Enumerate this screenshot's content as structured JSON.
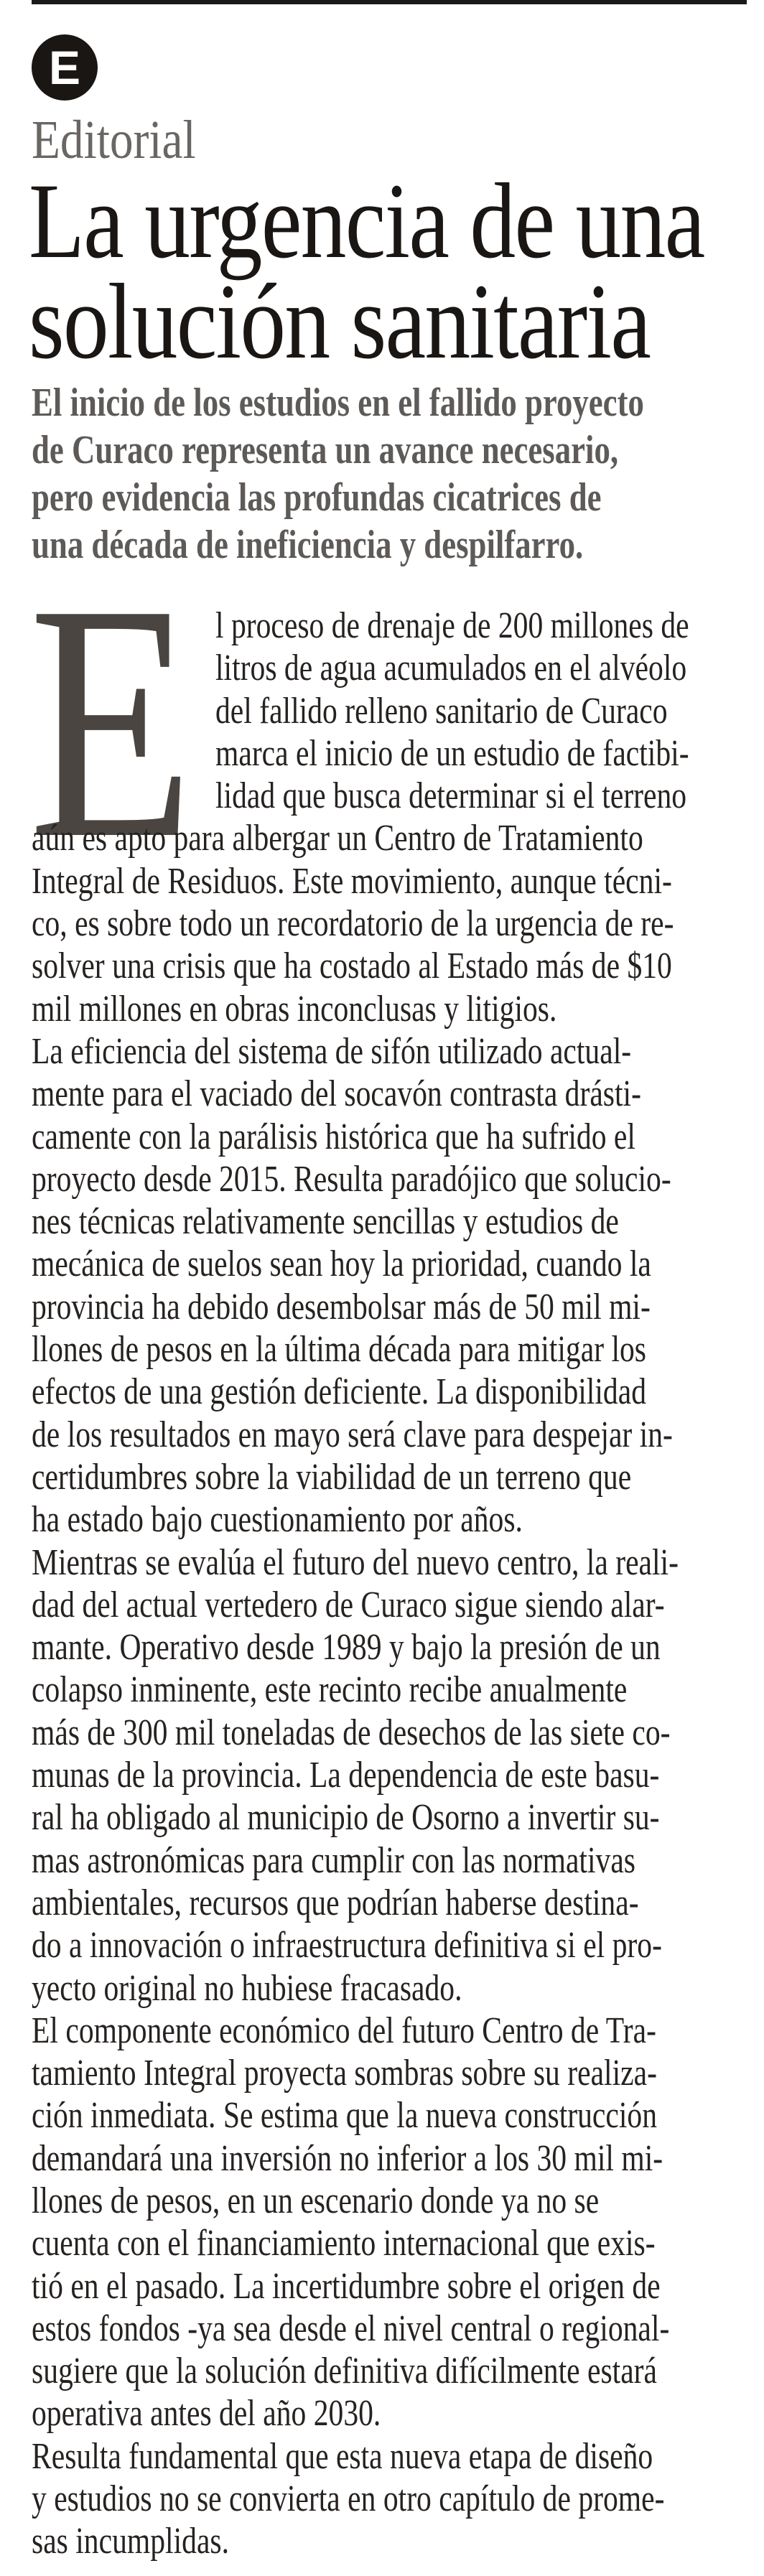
{
  "header": {
    "badge_letter": "E",
    "section": "Editorial"
  },
  "headline": {
    "lines": [
      "La urgencia de una",
      "solución sanitaria"
    ]
  },
  "deck": {
    "lines": [
      "El inicio de los estudios en el fallido proyecto",
      "de Curaco representa un avance necesario,",
      "pero evidencia las profundas cicatrices de",
      "una década de ineficiencia y despilfarro."
    ]
  },
  "article": {
    "drop_cap": "E",
    "paragraphs": [
      {
        "lines": [
          "l proceso de drenaje de 200 millones de",
          "litros de agua acumulados en el alvéolo",
          "del fallido relleno sanitario de Curaco",
          "marca el inicio de un estudio de factibi-",
          "lidad que busca determinar si el terreno",
          "aún es apto para albergar un Centro de Tratamiento",
          "Integral de Residuos. Este movimiento, aunque técni-",
          "co, es sobre todo un recordatorio de la urgencia de re-",
          "solver una crisis que ha costado al Estado más de $10",
          "mil millones en obras inconclusas y litigios."
        ]
      },
      {
        "lines": [
          "La eficiencia del sistema de sifón utilizado actual-",
          "mente para el vaciado del socavón contrasta drásti-",
          "camente con la parálisis histórica que ha sufrido el",
          "proyecto desde 2015. Resulta paradójico que solucio-",
          "nes técnicas relativamente sencillas y estudios de",
          "mecánica de suelos sean hoy la prioridad, cuando la",
          "provincia ha debido desembolsar más de 50 mil mi-",
          "llones de pesos en la última década para mitigar los",
          "efectos de una gestión deficiente. La disponibilidad",
          "de los resultados en mayo será clave para despejar in-",
          "certidumbres sobre la viabilidad de un terreno que",
          "ha estado bajo cuestionamiento por años."
        ]
      },
      {
        "lines": [
          "Mientras se evalúa el futuro del nuevo centro, la reali-",
          "dad del actual vertedero de Curaco sigue siendo alar-",
          "mante. Operativo desde 1989 y bajo la presión de un",
          "colapso inminente, este recinto recibe anualmente",
          "más de 300 mil toneladas de desechos de las siete co-",
          "munas de la provincia. La dependencia de este basu-",
          "ral ha obligado al municipio de Osorno a invertir su-",
          "mas astronómicas para cumplir con las normativas",
          "ambientales, recursos que podrían haberse destina-",
          "do a innovación o infraestructura definitiva si el pro-",
          "yecto original no hubiese fracasado."
        ]
      },
      {
        "lines": [
          "El componente económico del futuro Centro de Tra-",
          "tamiento Integral proyecta sombras sobre su realiza-",
          "ción inmediata. Se estima que la nueva construcción",
          "demandará una inversión no inferior a los 30 mil mi-",
          "llones de pesos, en un escenario donde ya no se",
          "cuenta con el financiamiento internacional que exis-",
          "tió en el pasado. La incertidumbre sobre el origen de",
          "estos fondos -ya sea desde el nivel central o regional-",
          "sugiere que la solución definitiva difícilmente estará",
          "operativa antes del año 2030."
        ]
      },
      {
        "lines": [
          "Resulta fundamental que esta nueva etapa de diseño",
          "y estudios no se convierta en otro capítulo de prome-",
          "sas incumplidas."
        ]
      }
    ]
  }
}
